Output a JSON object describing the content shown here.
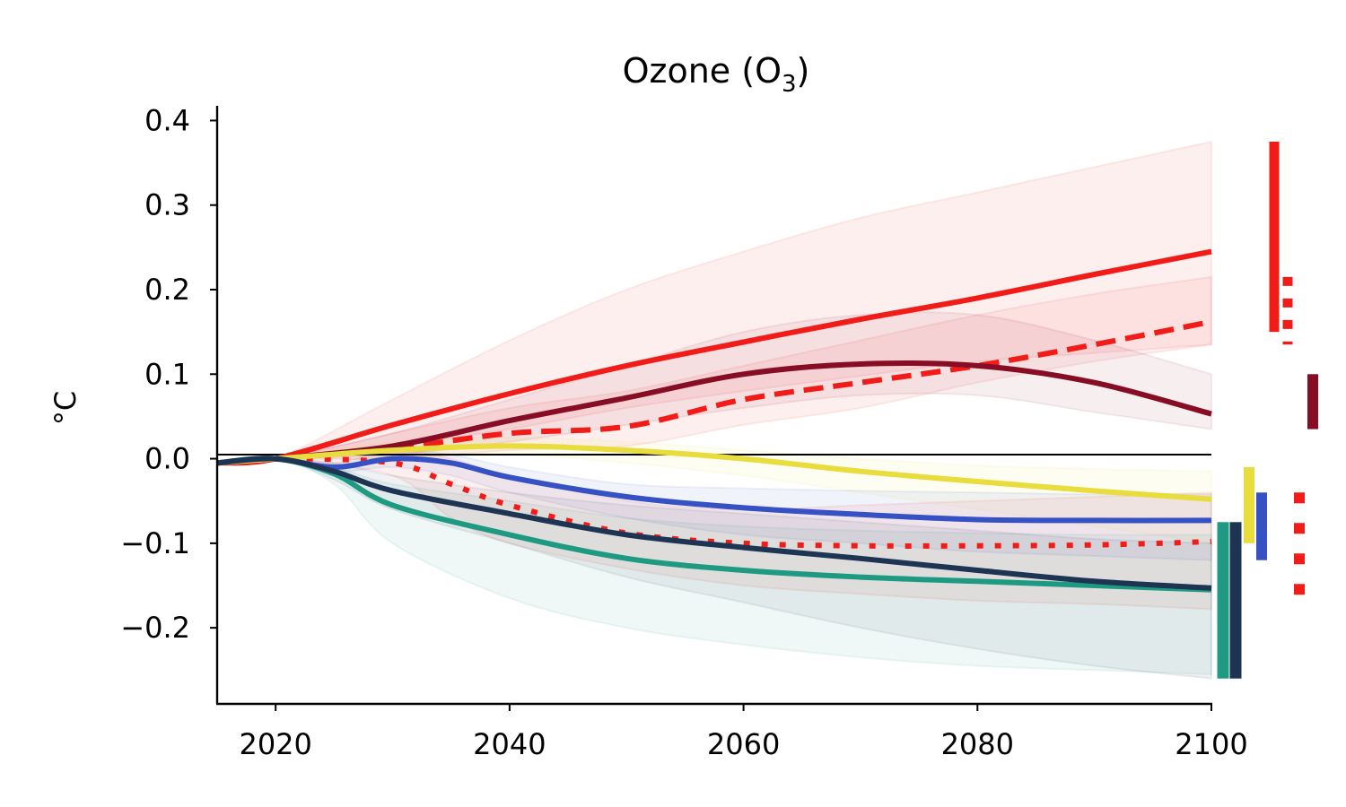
{
  "chart_data": {
    "type": "line",
    "title": "Ozone (O",
    "title_subscript": "3",
    "title_suffix": ")",
    "xlabel": "",
    "ylabel": "°C",
    "xlim": [
      2015,
      2100
    ],
    "ylim": [
      -0.29,
      0.41
    ],
    "xticks": [
      "2020",
      "2040",
      "2060",
      "2080",
      "2100"
    ],
    "yticks": [
      "0.4",
      "0.3",
      "0.2",
      "0.1",
      "0.0",
      "−0.1",
      "−0.2"
    ],
    "grid": false,
    "legend": "none",
    "zero_line": true,
    "series": [
      {
        "color": "#f11b17",
        "dash": "solid",
        "x": [
          2015,
          2020,
          2030,
          2040,
          2050,
          2060,
          2070,
          2080,
          2090,
          2100
        ],
        "y": [
          -0.005,
          0.0,
          0.04,
          0.077,
          0.11,
          0.138,
          0.165,
          0.19,
          0.218,
          0.245
        ],
        "band_upper": [
          -0.005,
          0.0,
          0.07,
          0.14,
          0.2,
          0.245,
          0.285,
          0.315,
          0.345,
          0.375
        ],
        "band_lower": [
          -0.005,
          0.0,
          0.015,
          0.035,
          0.06,
          0.08,
          0.098,
          0.115,
          0.125,
          0.135
        ]
      },
      {
        "color": "#f11b17",
        "dash": "dashed",
        "x": [
          2015,
          2020,
          2030,
          2040,
          2050,
          2060,
          2070,
          2080,
          2090,
          2100
        ],
        "y": [
          -0.005,
          0.0,
          0.012,
          0.03,
          0.038,
          0.07,
          0.09,
          0.11,
          0.135,
          0.162
        ],
        "band_upper": [
          -0.005,
          0.0,
          0.03,
          0.06,
          0.08,
          0.11,
          0.14,
          0.17,
          0.195,
          0.215
        ],
        "band_lower": [
          -0.005,
          0.0,
          0.0,
          0.01,
          0.015,
          0.04,
          0.06,
          0.09,
          0.115,
          0.135
        ]
      },
      {
        "color": "#f11b17",
        "dash": "dotted",
        "x": [
          2015,
          2020,
          2030,
          2035,
          2040,
          2050,
          2060,
          2070,
          2080,
          2090,
          2100
        ],
        "y": [
          -0.005,
          0.0,
          -0.005,
          -0.03,
          -0.055,
          -0.088,
          -0.1,
          -0.103,
          -0.103,
          -0.102,
          -0.098
        ],
        "band_upper": [
          -0.005,
          0.0,
          0.01,
          0.0,
          -0.02,
          -0.05,
          -0.06,
          -0.055,
          -0.05,
          -0.045,
          -0.04
        ],
        "band_lower": [
          -0.005,
          0.0,
          -0.02,
          -0.07,
          -0.1,
          -0.13,
          -0.15,
          -0.16,
          -0.168,
          -0.172,
          -0.178
        ]
      },
      {
        "color": "#870d25",
        "dash": "solid",
        "x": [
          2015,
          2020,
          2030,
          2040,
          2050,
          2060,
          2070,
          2080,
          2090,
          2100
        ],
        "y": [
          -0.005,
          0.0,
          0.015,
          0.045,
          0.072,
          0.1,
          0.112,
          0.11,
          0.09,
          0.053
        ],
        "band_upper": [
          -0.005,
          0.0,
          0.03,
          0.07,
          0.11,
          0.15,
          0.17,
          0.17,
          0.14,
          0.1
        ],
        "band_lower": [
          -0.005,
          0.0,
          0.005,
          0.02,
          0.04,
          0.06,
          0.075,
          0.075,
          0.055,
          0.035
        ]
      },
      {
        "color": "#e9dc3d",
        "dash": "solid",
        "x": [
          2015,
          2020,
          2030,
          2040,
          2050,
          2060,
          2070,
          2080,
          2090,
          2100
        ],
        "y": [
          -0.005,
          0.0,
          0.01,
          0.015,
          0.01,
          0.0,
          -0.015,
          -0.027,
          -0.038,
          -0.048
        ],
        "band_upper": [
          -0.005,
          0.0,
          0.02,
          0.025,
          0.02,
          0.01,
          0.0,
          -0.008,
          -0.012,
          -0.015
        ],
        "band_lower": [
          -0.005,
          0.0,
          0.0,
          0.005,
          -0.005,
          -0.02,
          -0.04,
          -0.06,
          -0.08,
          -0.1
        ]
      },
      {
        "color": "#3651c3",
        "dash": "solid",
        "x": [
          2015,
          2020,
          2025,
          2030,
          2035,
          2040,
          2050,
          2060,
          2070,
          2080,
          2090,
          2100
        ],
        "y": [
          -0.005,
          0.0,
          -0.01,
          0.0,
          -0.005,
          -0.022,
          -0.045,
          -0.058,
          -0.066,
          -0.072,
          -0.073,
          -0.073
        ],
        "band_upper": [
          -0.005,
          0.0,
          -0.005,
          0.01,
          0.005,
          -0.01,
          -0.03,
          -0.035,
          -0.038,
          -0.04,
          -0.042,
          -0.042
        ],
        "band_lower": [
          -0.005,
          0.0,
          -0.015,
          -0.01,
          -0.02,
          -0.04,
          -0.07,
          -0.09,
          -0.1,
          -0.11,
          -0.115,
          -0.12
        ]
      },
      {
        "color": "#1f9a82",
        "dash": "solid",
        "x": [
          2015,
          2020,
          2025,
          2030,
          2040,
          2050,
          2060,
          2070,
          2080,
          2090,
          2100
        ],
        "y": [
          -0.005,
          0.0,
          -0.018,
          -0.055,
          -0.09,
          -0.118,
          -0.132,
          -0.14,
          -0.145,
          -0.15,
          -0.155
        ],
        "band_upper": [
          -0.005,
          0.0,
          -0.01,
          -0.03,
          -0.05,
          -0.07,
          -0.08,
          -0.085,
          -0.088,
          -0.09,
          -0.09
        ],
        "band_lower": [
          -0.005,
          0.0,
          -0.03,
          -0.1,
          -0.165,
          -0.2,
          -0.22,
          -0.235,
          -0.245,
          -0.25,
          -0.255
        ]
      },
      {
        "color": "#1d3453",
        "dash": "solid",
        "x": [
          2015,
          2020,
          2025,
          2030,
          2040,
          2050,
          2060,
          2070,
          2080,
          2090,
          2100
        ],
        "y": [
          -0.005,
          0.0,
          -0.015,
          -0.038,
          -0.065,
          -0.09,
          -0.105,
          -0.118,
          -0.132,
          -0.145,
          -0.153
        ],
        "band_upper": [
          -0.005,
          0.0,
          -0.005,
          -0.02,
          -0.04,
          -0.055,
          -0.065,
          -0.075,
          -0.085,
          -0.095,
          -0.1
        ],
        "band_lower": [
          -0.005,
          0.0,
          -0.025,
          -0.06,
          -0.1,
          -0.14,
          -0.17,
          -0.2,
          -0.225,
          -0.245,
          -0.26
        ]
      }
    ],
    "range_bars": [
      {
        "color": "#f11b17",
        "style": "solid",
        "ymin": 0.15,
        "ymax": 0.375
      },
      {
        "color": "#f11b17",
        "style": "dashed",
        "ymin": 0.135,
        "ymax": 0.215
      },
      {
        "color": "#870d25",
        "style": "solid",
        "ymin": 0.035,
        "ymax": 0.1
      },
      {
        "color": "#e9dc3d",
        "style": "solid",
        "ymin": -0.1,
        "ymax": -0.01
      },
      {
        "color": "#3651c3",
        "style": "solid",
        "ymin": -0.12,
        "ymax": -0.04
      },
      {
        "color": "#f11b17",
        "style": "dotted",
        "ymin": -0.178,
        "ymax": -0.04
      },
      {
        "color": "#1f9a82",
        "style": "solid",
        "ymin": -0.26,
        "ymax": -0.075
      },
      {
        "color": "#1d3453",
        "style": "solid",
        "ymin": -0.26,
        "ymax": -0.075
      }
    ]
  }
}
